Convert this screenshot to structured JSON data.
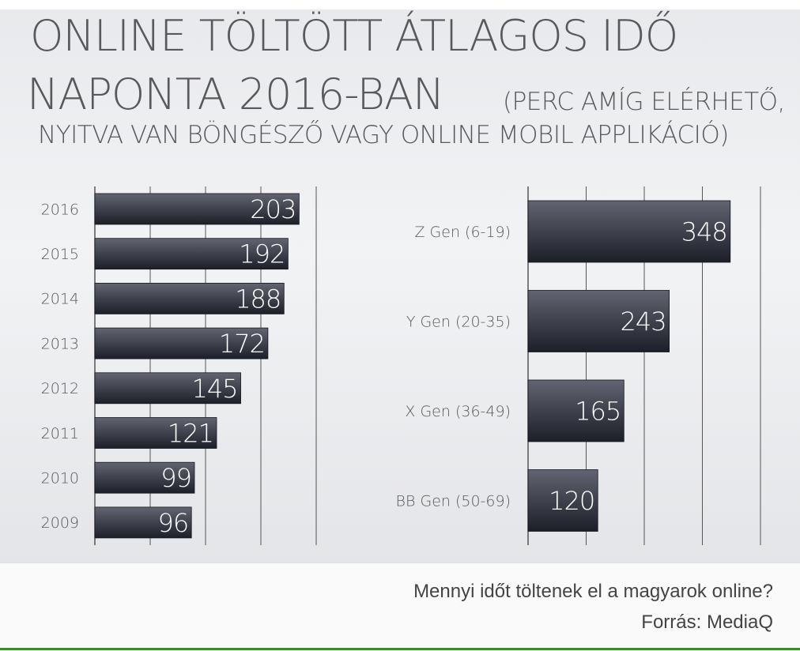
{
  "title_line1": "ONLINE TÖLTÖTT ÁTLAGOS IDŐ",
  "title_line2": "NAPONTA 2016-BAN",
  "subtitle_line1": "(PERC AMÍG ELÉRHETŐ,",
  "subtitle_line2": "NYITVA VAN BÖNGÉSZŐ VAGY ONLINE MOBIL APPLIKÁCIÓ)",
  "caption": {
    "text": "Mennyi időt töltenek el a magyarok online?",
    "source": "Forrás: MediaQ"
  },
  "colors": {
    "bar_top": "#626571",
    "bar_bottom": "#1c1f28",
    "text": "#58595d",
    "gridline": "#555555"
  },
  "chart_data": [
    {
      "type": "bar",
      "orientation": "horizontal",
      "categories": [
        "2016",
        "2015",
        "2014",
        "2013",
        "2012",
        "2011",
        "2010",
        "2009"
      ],
      "values": [
        203,
        192,
        188,
        172,
        145,
        121,
        99,
        96
      ],
      "xlim": [
        0,
        220
      ],
      "grid": true,
      "data_labels": true
    },
    {
      "type": "bar",
      "orientation": "horizontal",
      "categories": [
        "Z Gen (6-19)",
        "Y Gen (20-35)",
        "X Gen (36-49)",
        "BB Gen (50-69)"
      ],
      "values": [
        348,
        243,
        165,
        120
      ],
      "xlim": [
        0,
        400
      ],
      "grid": true,
      "data_labels": true
    }
  ]
}
